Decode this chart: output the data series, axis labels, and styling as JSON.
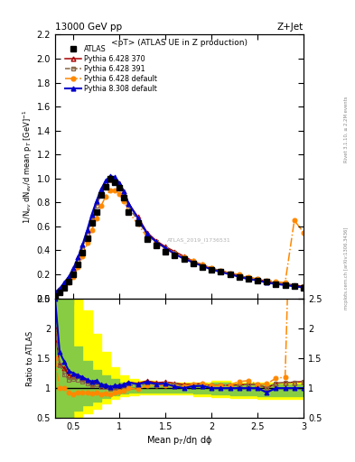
{
  "title_top": "13000 GeV pp",
  "title_right": "Z+Jet",
  "plot_title": "<pT> (ATLAS UE in Z production)",
  "ylabel_main": "1/N$_{ev}$ dN$_{ev}$/d mean p$_T$ [GeV]$^{-1}$",
  "ylabel_ratio": "Ratio to ATLAS",
  "xlabel": "Mean p$_T$/dη dϕ",
  "watermark": "ATLAS_2019_I1736531",
  "right_label": "Rivet 3.1.10, ≥ 2.2M events",
  "right_label2": "mcplots.cern.ch [arXiv:1306.3436]",
  "x_data": [
    0.3,
    0.35,
    0.4,
    0.45,
    0.5,
    0.55,
    0.6,
    0.65,
    0.7,
    0.75,
    0.8,
    0.85,
    0.9,
    0.95,
    1.0,
    1.05,
    1.1,
    1.2,
    1.3,
    1.4,
    1.5,
    1.6,
    1.7,
    1.8,
    1.9,
    2.0,
    2.1,
    2.2,
    2.3,
    2.4,
    2.5,
    2.6,
    2.7,
    2.8,
    2.9,
    3.0
  ],
  "atlas_y": [
    0.02,
    0.05,
    0.09,
    0.14,
    0.2,
    0.28,
    0.38,
    0.5,
    0.63,
    0.72,
    0.86,
    0.93,
    1.0,
    0.97,
    0.92,
    0.84,
    0.72,
    0.63,
    0.49,
    0.44,
    0.39,
    0.36,
    0.33,
    0.29,
    0.26,
    0.24,
    0.22,
    0.2,
    0.18,
    0.16,
    0.15,
    0.14,
    0.12,
    0.11,
    0.1,
    0.09
  ],
  "p6_370_y": [
    0.04,
    0.07,
    0.12,
    0.17,
    0.24,
    0.34,
    0.44,
    0.56,
    0.68,
    0.8,
    0.9,
    0.97,
    1.01,
    1.0,
    0.96,
    0.89,
    0.79,
    0.68,
    0.55,
    0.48,
    0.43,
    0.39,
    0.35,
    0.31,
    0.28,
    0.25,
    0.23,
    0.21,
    0.19,
    0.17,
    0.16,
    0.14,
    0.13,
    0.12,
    0.11,
    0.1
  ],
  "p6_391_y": [
    0.04,
    0.07,
    0.11,
    0.16,
    0.23,
    0.32,
    0.42,
    0.54,
    0.66,
    0.77,
    0.87,
    0.94,
    0.98,
    0.97,
    0.93,
    0.87,
    0.76,
    0.65,
    0.53,
    0.47,
    0.42,
    0.38,
    0.34,
    0.3,
    0.27,
    0.25,
    0.23,
    0.21,
    0.19,
    0.17,
    0.16,
    0.14,
    0.13,
    0.12,
    0.11,
    0.1
  ],
  "p6_def_y": [
    0.03,
    0.05,
    0.09,
    0.13,
    0.18,
    0.26,
    0.35,
    0.46,
    0.57,
    0.67,
    0.77,
    0.85,
    0.9,
    0.9,
    0.87,
    0.81,
    0.72,
    0.62,
    0.51,
    0.46,
    0.41,
    0.37,
    0.34,
    0.31,
    0.28,
    0.25,
    0.23,
    0.21,
    0.2,
    0.18,
    0.16,
    0.15,
    0.14,
    0.13,
    0.65,
    0.55
  ],
  "p8_def_y": [
    0.05,
    0.08,
    0.13,
    0.18,
    0.25,
    0.34,
    0.45,
    0.57,
    0.7,
    0.81,
    0.91,
    0.98,
    1.02,
    1.01,
    0.96,
    0.89,
    0.79,
    0.67,
    0.54,
    0.47,
    0.42,
    0.37,
    0.33,
    0.3,
    0.27,
    0.24,
    0.22,
    0.2,
    0.18,
    0.16,
    0.15,
    0.13,
    0.12,
    0.11,
    0.1,
    0.09
  ],
  "ylim_main": [
    0.0,
    2.2
  ],
  "ylim_ratio": [
    0.5,
    2.5
  ],
  "color_p6_370": "#aa0000",
  "color_p6_391": "#886644",
  "color_p6_def": "#ff8800",
  "color_p8_def": "#0000cc",
  "band_x": [
    0.3,
    0.5,
    0.6,
    0.7,
    0.8,
    0.9,
    1.0,
    1.1,
    1.2,
    1.4,
    1.6,
    1.8,
    2.0,
    2.2,
    2.5,
    3.01
  ],
  "band_yellow_lo": [
    0.5,
    0.5,
    0.58,
    0.65,
    0.75,
    0.82,
    0.86,
    0.88,
    0.9,
    0.9,
    0.89,
    0.87,
    0.85,
    0.84,
    0.82,
    0.8
  ],
  "band_yellow_hi": [
    2.5,
    2.5,
    2.3,
    1.9,
    1.6,
    1.35,
    1.22,
    1.16,
    1.12,
    1.1,
    1.09,
    1.1,
    1.12,
    1.1,
    1.09,
    1.12
  ],
  "band_green_lo": [
    0.5,
    0.62,
    0.72,
    0.78,
    0.84,
    0.88,
    0.91,
    0.92,
    0.93,
    0.93,
    0.92,
    0.91,
    0.89,
    0.88,
    0.87,
    0.86
  ],
  "band_green_hi": [
    2.5,
    1.7,
    1.45,
    1.3,
    1.22,
    1.15,
    1.1,
    1.08,
    1.07,
    1.06,
    1.06,
    1.07,
    1.09,
    1.07,
    1.06,
    1.07
  ]
}
